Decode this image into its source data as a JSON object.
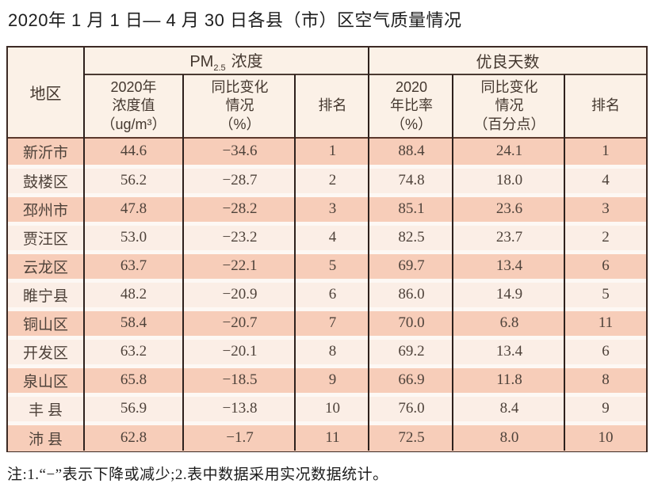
{
  "title": "2020年 1 月 1 日— 4 月 30 日各县（市）区空气质量情况",
  "table": {
    "corner_header": "地区",
    "group_headers": {
      "pm25_prefix": "PM",
      "pm25_sub": "2.5",
      "pm25_suffix": "浓度",
      "good_days": "优良天数"
    },
    "sub_headers": {
      "pm_value": "2020年\n浓度值\n（ug/m³）",
      "pm_change": "同比变化\n情况\n（%）",
      "pm_rank": "排名",
      "gd_ratio": "2020\n年比率\n（%）",
      "gd_change": "同比变化\n情况\n（百分点）",
      "gd_rank": "排名"
    },
    "rows": [
      {
        "region": "新沂市",
        "pm_value": "44.6",
        "pm_change": "−34.6",
        "pm_rank": "1",
        "gd_ratio": "88.4",
        "gd_change": "24.1",
        "gd_rank": "1"
      },
      {
        "region": "鼓楼区",
        "pm_value": "56.2",
        "pm_change": "−28.7",
        "pm_rank": "2",
        "gd_ratio": "74.8",
        "gd_change": "18.0",
        "gd_rank": "4"
      },
      {
        "region": "邳州市",
        "pm_value": "47.8",
        "pm_change": "−28.2",
        "pm_rank": "3",
        "gd_ratio": "85.1",
        "gd_change": "23.6",
        "gd_rank": "3"
      },
      {
        "region": "贾汪区",
        "pm_value": "53.0",
        "pm_change": "−23.2",
        "pm_rank": "4",
        "gd_ratio": "82.5",
        "gd_change": "23.7",
        "gd_rank": "2"
      },
      {
        "region": "云龙区",
        "pm_value": "63.7",
        "pm_change": "−22.1",
        "pm_rank": "5",
        "gd_ratio": "69.7",
        "gd_change": "13.4",
        "gd_rank": "6"
      },
      {
        "region": "睢宁县",
        "pm_value": "48.2",
        "pm_change": "−20.9",
        "pm_rank": "6",
        "gd_ratio": "86.0",
        "gd_change": "14.9",
        "gd_rank": "5"
      },
      {
        "region": "铜山区",
        "pm_value": "58.4",
        "pm_change": "−20.7",
        "pm_rank": "7",
        "gd_ratio": "70.0",
        "gd_change": "6.8",
        "gd_rank": "11"
      },
      {
        "region": "开发区",
        "pm_value": "63.2",
        "pm_change": "−20.1",
        "pm_rank": "8",
        "gd_ratio": "69.2",
        "gd_change": "13.4",
        "gd_rank": "6"
      },
      {
        "region": "泉山区",
        "pm_value": "65.8",
        "pm_change": "−18.5",
        "pm_rank": "9",
        "gd_ratio": "66.9",
        "gd_change": "11.8",
        "gd_rank": "8"
      },
      {
        "region": "丰 县",
        "pm_value": "56.9",
        "pm_change": "−13.8",
        "pm_rank": "10",
        "gd_ratio": "76.0",
        "gd_change": "8.4",
        "gd_rank": "9"
      },
      {
        "region": "沛 县",
        "pm_value": "62.8",
        "pm_change": "−1.7",
        "pm_rank": "11",
        "gd_ratio": "72.5",
        "gd_change": "8.0",
        "gd_rank": "10"
      }
    ]
  },
  "footnote": "注:1.“−”表示下降或减少;2.表中数据采用实况数据统计。",
  "colors": {
    "row_dark": "#f7cdb9",
    "row_light": "#fbeee6",
    "row_gap": "#fdf8f4",
    "header_bg": "#fbf1e7",
    "border_dark": "#3c2a24",
    "text_body": "#4e423a",
    "text_title": "#1e1e1e"
  },
  "chart_data": {
    "type": "table",
    "title": "2020年1月1日—4月30日各县（市）区空气质量情况",
    "column_groups": [
      {
        "label": "PM2.5浓度",
        "span": [
          "2020年浓度值（ug/m³）",
          "同比变化情况（%）",
          "排名"
        ]
      },
      {
        "label": "优良天数",
        "span": [
          "2020年比率（%）",
          "同比变化情况（百分点）",
          "排名"
        ]
      }
    ],
    "columns": [
      "地区",
      "2020年浓度值（ug/m³）",
      "同比变化情况（%）",
      "PM2.5排名",
      "2020年比率（%）",
      "同比变化情况（百分点）",
      "优良天数排名"
    ],
    "rows": [
      [
        "新沂市",
        44.6,
        -34.6,
        1,
        88.4,
        24.1,
        1
      ],
      [
        "鼓楼区",
        56.2,
        -28.7,
        2,
        74.8,
        18.0,
        4
      ],
      [
        "邳州市",
        47.8,
        -28.2,
        3,
        85.1,
        23.6,
        3
      ],
      [
        "贾汪区",
        53.0,
        -23.2,
        4,
        82.5,
        23.7,
        2
      ],
      [
        "云龙区",
        63.7,
        -22.1,
        5,
        69.7,
        13.4,
        6
      ],
      [
        "睢宁县",
        48.2,
        -20.9,
        6,
        86.0,
        14.9,
        5
      ],
      [
        "铜山区",
        58.4,
        -20.7,
        7,
        70.0,
        6.8,
        11
      ],
      [
        "开发区",
        63.2,
        -20.1,
        8,
        69.2,
        13.4,
        6
      ],
      [
        "泉山区",
        65.8,
        -18.5,
        9,
        66.9,
        11.8,
        8
      ],
      [
        "丰县",
        56.9,
        -13.8,
        10,
        76.0,
        8.4,
        9
      ],
      [
        "沛县",
        62.8,
        -1.7,
        11,
        72.5,
        8.0,
        10
      ]
    ],
    "footnote": "注:1.“−”表示下降或减少;2.表中数据采用实况数据统计。"
  }
}
